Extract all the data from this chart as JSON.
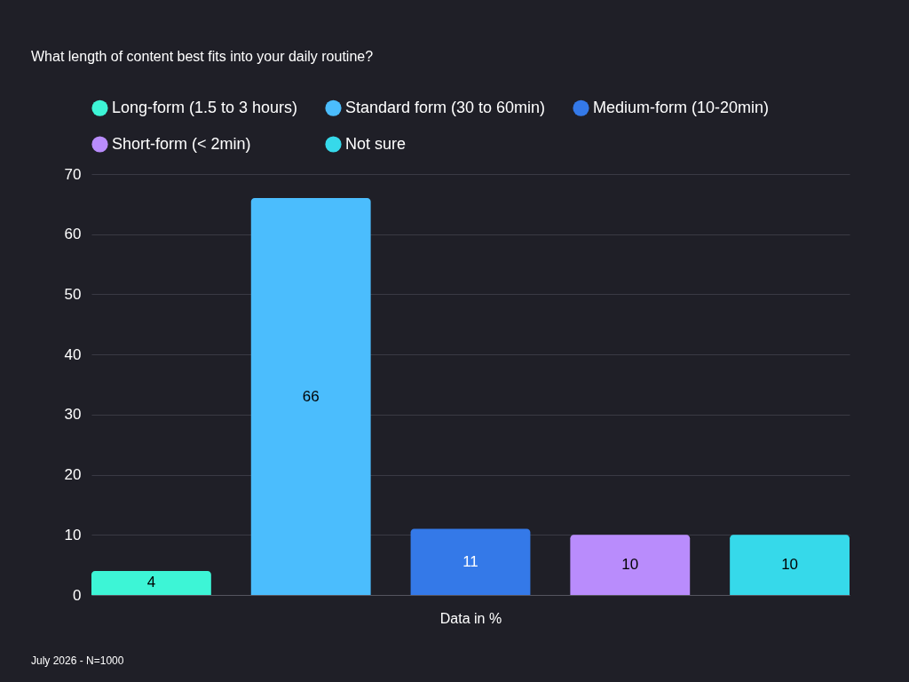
{
  "chart_data": {
    "type": "bar",
    "title": "What length of content best fits into your daily routine?",
    "categories": [
      null,
      null,
      null,
      null,
      null
    ],
    "series": [
      {
        "name": "Long-form (1.5 to 3 hours)",
        "color": "#3df5d6",
        "values": [
          4,
          null,
          null,
          null,
          null
        ]
      },
      {
        "name": "Standard form (30 to 60min)",
        "color": "#4bbdfd",
        "values": [
          null,
          66,
          null,
          null,
          null
        ]
      },
      {
        "name": "Medium-form (10-20min)",
        "color": "#3479e8",
        "values": [
          null,
          null,
          11,
          null,
          null
        ]
      },
      {
        "name": "Short-form (< 2min)",
        "color": "#b98cfc",
        "values": [
          null,
          null,
          null,
          10,
          null
        ]
      },
      {
        "name": "Not sure",
        "color": "#36d9ea",
        "values": [
          null,
          null,
          null,
          null,
          10
        ]
      }
    ],
    "xlabel": "Data in %",
    "ylim": [
      0,
      70
    ],
    "yticks": [
      0,
      10,
      20,
      30,
      40,
      50,
      60,
      70
    ],
    "grid": "y",
    "legend": "top",
    "data_labels": true,
    "tick_labels": "y",
    "annotations": [
      "July 2026 - N=1000"
    ]
  }
}
